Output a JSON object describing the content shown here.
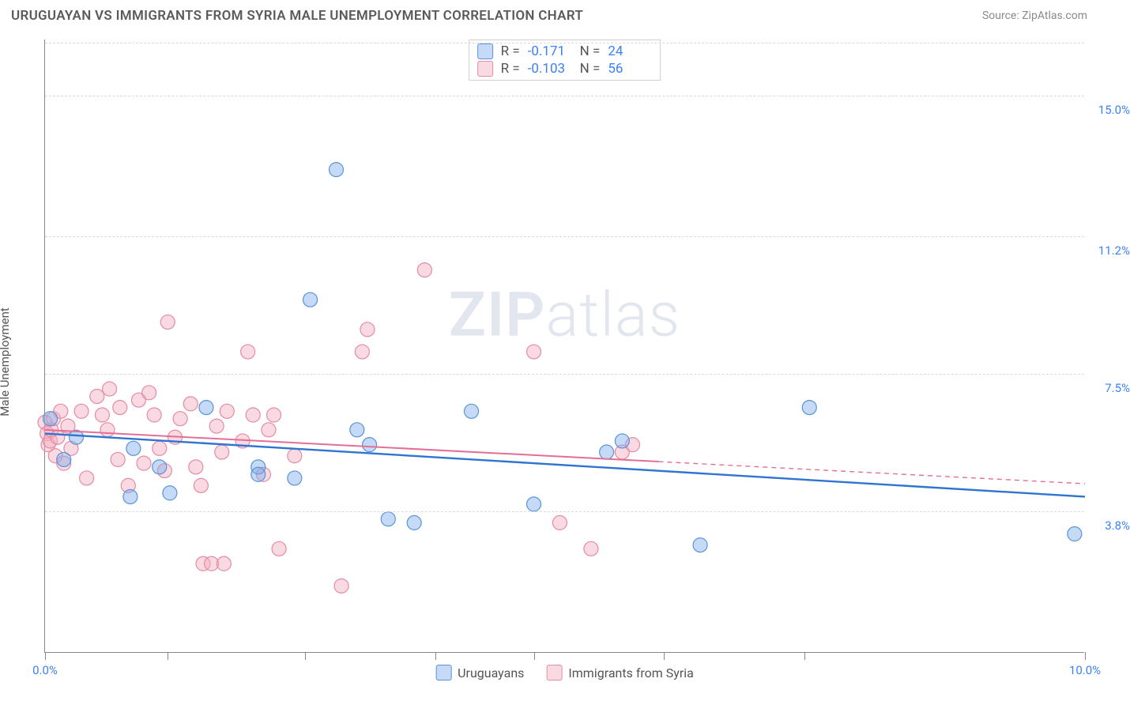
{
  "header": {
    "title": "URUGUAYAN VS IMMIGRANTS FROM SYRIA MALE UNEMPLOYMENT CORRELATION CHART",
    "source": "Source: ZipAtlas.com"
  },
  "chart": {
    "type": "scatter-with-trend",
    "ylabel": "Male Unemployment",
    "watermark_bold": "ZIP",
    "watermark_light": "atlas",
    "xlim": [
      0,
      10
    ],
    "ylim": [
      0,
      16.5
    ],
    "xticks": [
      0,
      1.18,
      2.5,
      3.75,
      4.7,
      5.95,
      7.3,
      10
    ],
    "xtick_labels": {
      "0": "0.0%",
      "10": "10.0%"
    },
    "yticks": [
      3.8,
      7.5,
      11.2,
      15.0
    ],
    "ytick_labels": [
      "3.8%",
      "7.5%",
      "11.2%",
      "15.0%"
    ],
    "background_color": "#ffffff",
    "grid_color": "#d9d9d9",
    "axis_color": "#888888",
    "label_color": "#3b82f6",
    "marker_radius": 9,
    "marker_stroke_width": 1.2,
    "series": [
      {
        "name": "Uruguayans",
        "r": "-0.171",
        "n": "24",
        "color_fill": "rgba(126,174,234,0.45)",
        "color_stroke": "#5a93d6",
        "trend": {
          "x1": 0,
          "y1": 5.9,
          "x2": 10,
          "y2": 4.2,
          "solid_until_x": 10,
          "color": "#2f74d0",
          "width": 2.4
        },
        "points": [
          [
            0.05,
            6.3
          ],
          [
            0.18,
            5.2
          ],
          [
            0.3,
            5.8
          ],
          [
            0.82,
            4.2
          ],
          [
            0.85,
            5.5
          ],
          [
            1.1,
            5.0
          ],
          [
            1.2,
            4.3
          ],
          [
            1.55,
            6.6
          ],
          [
            2.05,
            5.0
          ],
          [
            2.05,
            4.8
          ],
          [
            2.4,
            4.7
          ],
          [
            2.55,
            9.5
          ],
          [
            2.8,
            13.0
          ],
          [
            3.0,
            6.0
          ],
          [
            3.12,
            5.6
          ],
          [
            3.3,
            3.6
          ],
          [
            3.55,
            3.5
          ],
          [
            4.1,
            6.5
          ],
          [
            4.7,
            4.0
          ],
          [
            5.4,
            5.4
          ],
          [
            5.55,
            5.7
          ],
          [
            6.3,
            2.9
          ],
          [
            7.35,
            6.6
          ],
          [
            9.9,
            3.2
          ]
        ]
      },
      {
        "name": "Immigrants from Syria",
        "r": "-0.103",
        "n": "56",
        "color_fill": "rgba(243,172,190,0.45)",
        "color_stroke": "#e68aa5",
        "trend": {
          "x1": 0,
          "y1": 6.0,
          "x2": 10,
          "y2": 4.55,
          "solid_until_x": 5.9,
          "color": "#e46f95",
          "width": 2
        },
        "points": [
          [
            0.0,
            6.2
          ],
          [
            0.02,
            5.9
          ],
          [
            0.03,
            5.6
          ],
          [
            0.05,
            5.7
          ],
          [
            0.06,
            6.0
          ],
          [
            0.08,
            6.3
          ],
          [
            0.1,
            5.3
          ],
          [
            0.12,
            5.8
          ],
          [
            0.15,
            6.5
          ],
          [
            0.18,
            5.1
          ],
          [
            0.22,
            6.1
          ],
          [
            0.25,
            5.5
          ],
          [
            0.35,
            6.5
          ],
          [
            0.4,
            4.7
          ],
          [
            0.5,
            6.9
          ],
          [
            0.55,
            6.4
          ],
          [
            0.6,
            6.0
          ],
          [
            0.62,
            7.1
          ],
          [
            0.7,
            5.2
          ],
          [
            0.72,
            6.6
          ],
          [
            0.8,
            4.5
          ],
          [
            0.9,
            6.8
          ],
          [
            0.95,
            5.1
          ],
          [
            1.0,
            7.0
          ],
          [
            1.05,
            6.4
          ],
          [
            1.1,
            5.5
          ],
          [
            1.15,
            4.9
          ],
          [
            1.18,
            8.9
          ],
          [
            1.25,
            5.8
          ],
          [
            1.3,
            6.3
          ],
          [
            1.4,
            6.7
          ],
          [
            1.45,
            5.0
          ],
          [
            1.5,
            4.5
          ],
          [
            1.52,
            2.4
          ],
          [
            1.6,
            2.4
          ],
          [
            1.65,
            6.1
          ],
          [
            1.7,
            5.4
          ],
          [
            1.72,
            2.4
          ],
          [
            1.75,
            6.5
          ],
          [
            1.9,
            5.7
          ],
          [
            1.95,
            8.1
          ],
          [
            2.0,
            6.4
          ],
          [
            2.1,
            4.8
          ],
          [
            2.15,
            6.0
          ],
          [
            2.2,
            6.4
          ],
          [
            2.25,
            2.8
          ],
          [
            2.4,
            5.3
          ],
          [
            2.85,
            1.8
          ],
          [
            3.05,
            8.1
          ],
          [
            3.1,
            8.7
          ],
          [
            3.65,
            10.3
          ],
          [
            4.7,
            8.1
          ],
          [
            4.95,
            3.5
          ],
          [
            5.25,
            2.8
          ],
          [
            5.55,
            5.4
          ],
          [
            5.65,
            5.6
          ]
        ]
      }
    ],
    "legend": {
      "items": [
        "Uruguayans",
        "Immigrants from Syria"
      ]
    }
  }
}
